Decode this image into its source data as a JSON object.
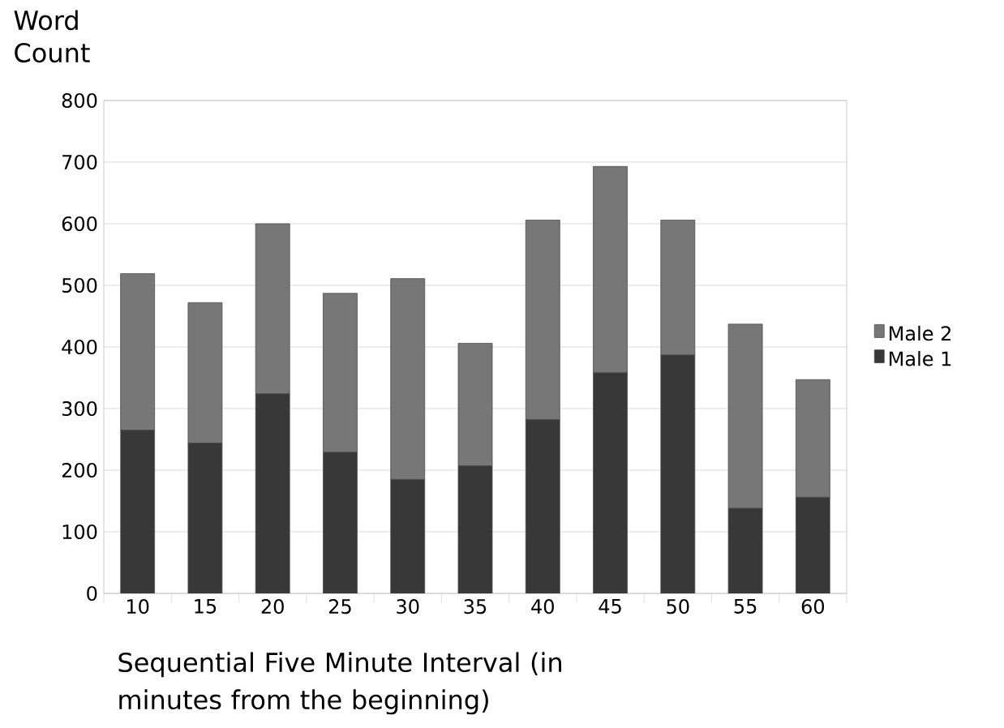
{
  "chart_data": {
    "type": "bar",
    "stacked": true,
    "xlabel": "Sequential Five Minute Interval (in minutes from the beginning)",
    "ylabel": "Word Count",
    "categories": [
      "10",
      "15",
      "20",
      "25",
      "30",
      "35",
      "40",
      "45",
      "50",
      "55",
      "60"
    ],
    "series": [
      {
        "name": "Male 1",
        "color": "#383838",
        "values": [
          265,
          244,
          324,
          229,
          185,
          207,
          282,
          358,
          387,
          138,
          156
        ]
      },
      {
        "name": "Male 2",
        "color": "#777777",
        "values": [
          254,
          228,
          276,
          258,
          326,
          199,
          324,
          335,
          219,
          299,
          191
        ]
      }
    ],
    "ylim": [
      0,
      800
    ],
    "yticks": [
      0,
      100,
      200,
      300,
      400,
      500,
      600,
      700,
      800
    ],
    "grid": "y",
    "legend": "right"
  }
}
